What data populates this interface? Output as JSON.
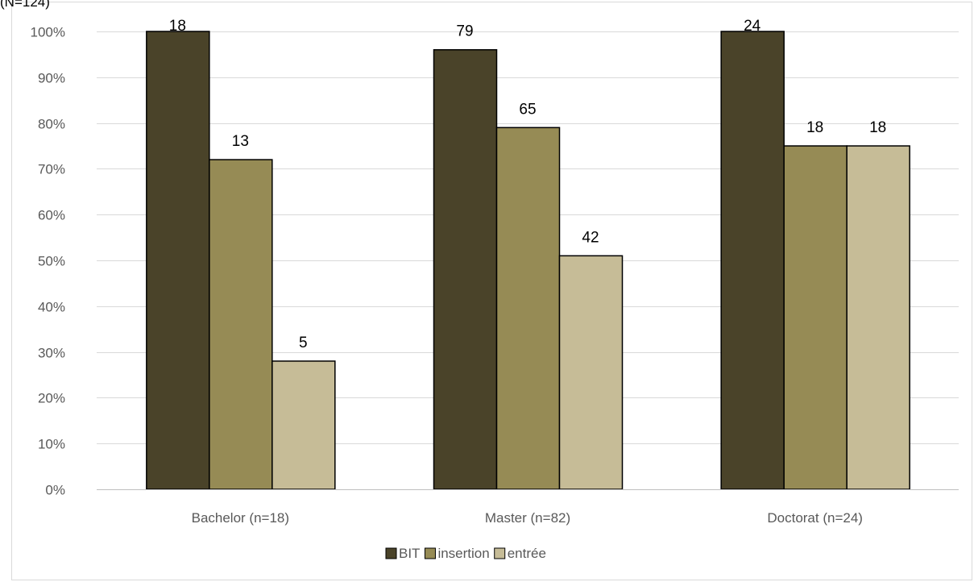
{
  "title_fragment": "(N=124)",
  "colors": {
    "BIT": "#4a4329",
    "insertion": "#968b55",
    "entrée": "#c6bc97",
    "grid": "#d9d9d9",
    "frame": "#d9d9d9",
    "axis": "#bfbfbf",
    "bar_stroke": "#000000"
  },
  "chart_data": {
    "type": "bar",
    "categories": [
      "Bachelor (n=18)",
      "Master (n=82)",
      "Doctorat (n=24)"
    ],
    "series": [
      {
        "name": "BIT",
        "values": [
          100,
          96,
          100
        ],
        "labels": [
          "18",
          "79",
          "24"
        ]
      },
      {
        "name": "insertion",
        "values": [
          72,
          79,
          75
        ],
        "labels": [
          "13",
          "65",
          "18"
        ]
      },
      {
        "name": "entrée",
        "values": [
          28,
          51,
          75
        ],
        "labels": [
          "5",
          "42",
          "18"
        ]
      }
    ],
    "ylim": [
      0,
      100
    ],
    "yticks": [
      "0%",
      "10%",
      "20%",
      "30%",
      "40%",
      "50%",
      "60%",
      "70%",
      "80%",
      "90%",
      "100%"
    ],
    "grid": true,
    "legend": "bottom"
  }
}
